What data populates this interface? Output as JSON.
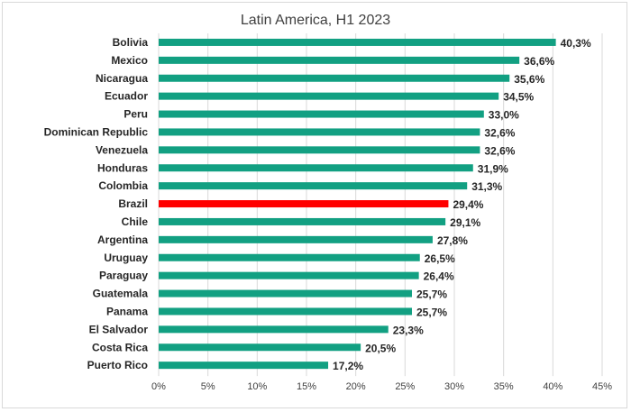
{
  "chart_data": {
    "type": "bar",
    "orientation": "horizontal",
    "title": "Latin America, H1 2023",
    "categories": [
      "Bolivia",
      "Mexico",
      "Nicaragua",
      "Ecuador",
      "Peru",
      "Dominican Republic",
      "Venezuela",
      "Honduras",
      "Colombia",
      "Brazil",
      "Chile",
      "Argentina",
      "Uruguay",
      "Paraguay",
      "Guatemala",
      "Panama",
      "El Salvador",
      "Costa Rica",
      "Puerto Rico"
    ],
    "values": [
      40.3,
      36.6,
      35.6,
      34.5,
      33.0,
      32.6,
      32.6,
      31.9,
      31.3,
      29.4,
      29.1,
      27.8,
      26.5,
      26.4,
      25.7,
      25.7,
      23.3,
      20.5,
      17.2
    ],
    "value_labels": [
      "40,3%",
      "36,6%",
      "35,6%",
      "34,5%",
      "33,0%",
      "32,6%",
      "32,6%",
      "31,9%",
      "31,3%",
      "29,4%",
      "29,1%",
      "27,8%",
      "26,5%",
      "26,4%",
      "25,7%",
      "25,7%",
      "23,3%",
      "20,5%",
      "17,2%"
    ],
    "x_ticks": [
      "0%",
      "5%",
      "10%",
      "15%",
      "20%",
      "25%",
      "30%",
      "35%",
      "40%",
      "45%"
    ],
    "xlim": [
      0,
      45
    ],
    "grid": true,
    "highlight": "Brazil",
    "colors": {
      "bar": "#12a082",
      "highlight": "#ff0000",
      "grid": "#d9d9d9"
    }
  }
}
